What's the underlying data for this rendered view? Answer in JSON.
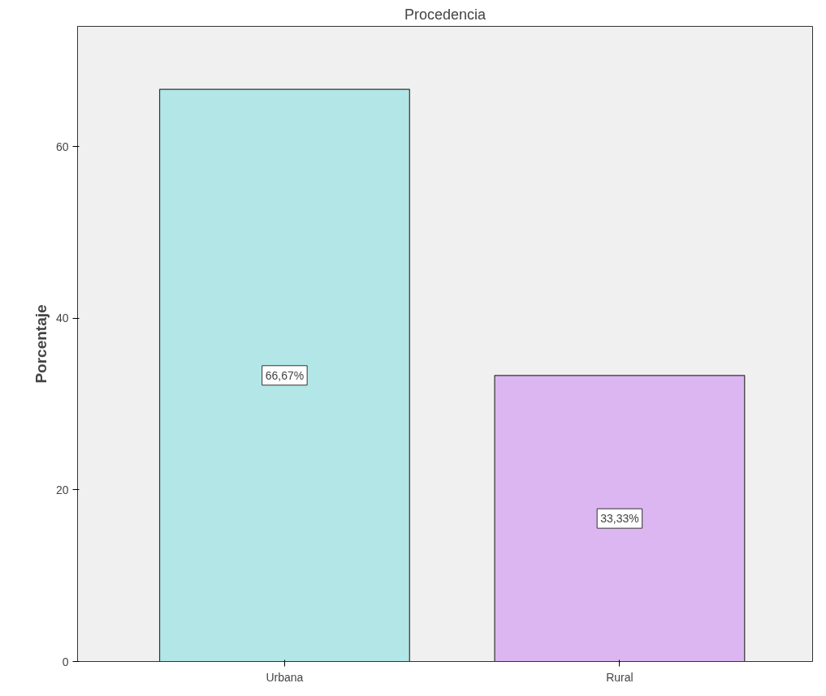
{
  "chart_data": {
    "type": "bar",
    "title": "Procedencia",
    "ylabel": "Porcentaje",
    "categories": [
      "Urbana",
      "Rural"
    ],
    "values": [
      66.67,
      33.33
    ],
    "colors": [
      "#b3e6e6",
      "#dcb6f0"
    ],
    "value_labels": [
      "66,67%",
      "33,33%"
    ],
    "ylim": [
      0,
      74
    ],
    "yticks": [
      0,
      20,
      40,
      60
    ],
    "grid": false
  }
}
